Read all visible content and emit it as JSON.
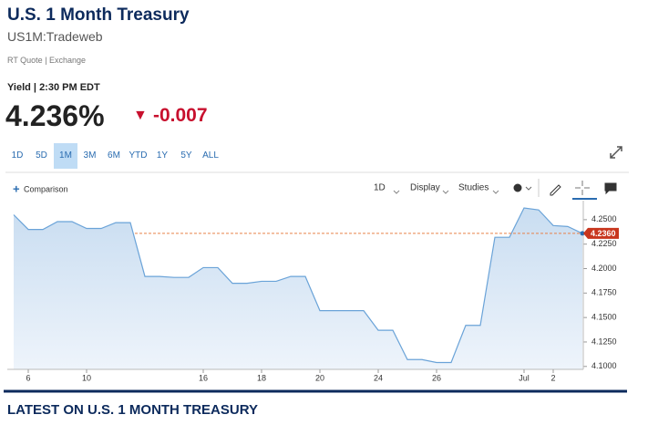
{
  "header": {
    "title": "U.S. 1 Month Treasury",
    "symbol": "US1M:Tradeweb",
    "source": "RT Quote | Exchange",
    "yield_time": "Yield | 2:30 PM EDT",
    "price": "4.236%",
    "change": "-0.007"
  },
  "ranges": [
    "1D",
    "5D",
    "1M",
    "3M",
    "6M",
    "YTD",
    "1Y",
    "5Y",
    "ALL"
  ],
  "selected_range": "1M",
  "toolbar": {
    "comparison": "Comparison",
    "interval": "1D",
    "display": "Display",
    "studies": "Studies"
  },
  "chart_data": {
    "type": "area",
    "categories": [
      null,
      "6",
      null,
      null,
      null,
      "10",
      null,
      null,
      null,
      null,
      null,
      null,
      null,
      "16",
      null,
      null,
      null,
      "18",
      null,
      null,
      null,
      "20",
      null,
      null,
      null,
      "24",
      null,
      null,
      null,
      "26",
      null,
      null,
      null,
      null,
      null,
      "Jul",
      null,
      "2",
      null,
      null
    ],
    "values": [
      4.255,
      4.24,
      4.24,
      4.248,
      4.248,
      4.241,
      4.241,
      4.247,
      4.247,
      4.192,
      4.192,
      4.191,
      4.191,
      4.201,
      4.201,
      4.185,
      4.185,
      4.187,
      4.187,
      4.192,
      4.192,
      4.157,
      4.157,
      4.157,
      4.157,
      4.137,
      4.137,
      4.107,
      4.107,
      4.104,
      4.104,
      4.142,
      4.142,
      4.232,
      4.232,
      4.262,
      4.26,
      4.244,
      4.243,
      4.236
    ],
    "color": "#6aa3d8",
    "ylim": [
      4.097,
      4.262
    ],
    "yticks": [
      {
        "value": 4.25,
        "label": "4.2500"
      },
      {
        "value": 4.225,
        "label": "4.2250"
      },
      {
        "value": 4.2,
        "label": "4.2000"
      },
      {
        "value": 4.175,
        "label": "4.1750"
      },
      {
        "value": 4.15,
        "label": "4.1500"
      },
      {
        "value": 4.125,
        "label": "4.1250"
      },
      {
        "value": 4.1,
        "label": "4.1000"
      }
    ],
    "last_value_label": "4.2360"
  },
  "section_title": "LATEST ON U.S. 1 MONTH TREASURY"
}
